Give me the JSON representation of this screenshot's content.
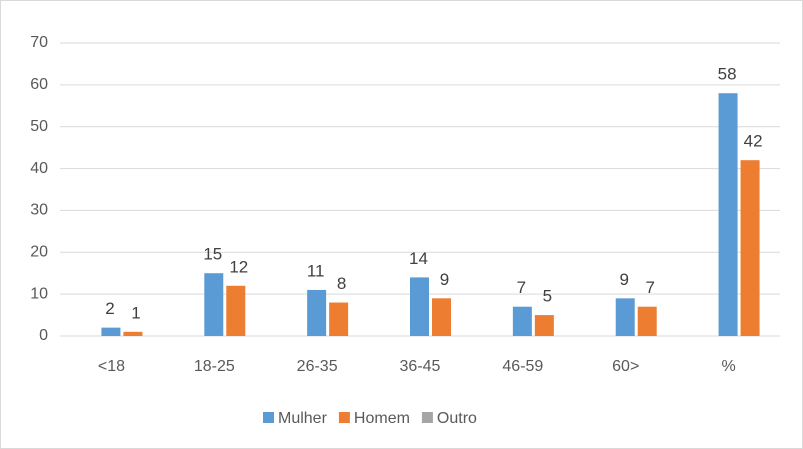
{
  "chart_data": {
    "type": "bar",
    "categories": [
      "<18",
      "18-25",
      "26-35",
      "36-45",
      "46-59",
      "60>",
      "%"
    ],
    "series": [
      {
        "name": "Mulher",
        "color": "#5b9bd5",
        "values": [
          2,
          15,
          11,
          14,
          7,
          9,
          58
        ]
      },
      {
        "name": "Homem",
        "color": "#ed7d31",
        "values": [
          1,
          12,
          8,
          9,
          5,
          7,
          42
        ]
      },
      {
        "name": "Outro",
        "color": "#a5a5a5",
        "values": [
          null,
          null,
          null,
          null,
          null,
          null,
          null
        ]
      }
    ],
    "ylim": [
      0,
      70
    ],
    "yticks": [
      0,
      10,
      20,
      30,
      40,
      50,
      60,
      70
    ],
    "grid": true,
    "legend": "bottom"
  }
}
